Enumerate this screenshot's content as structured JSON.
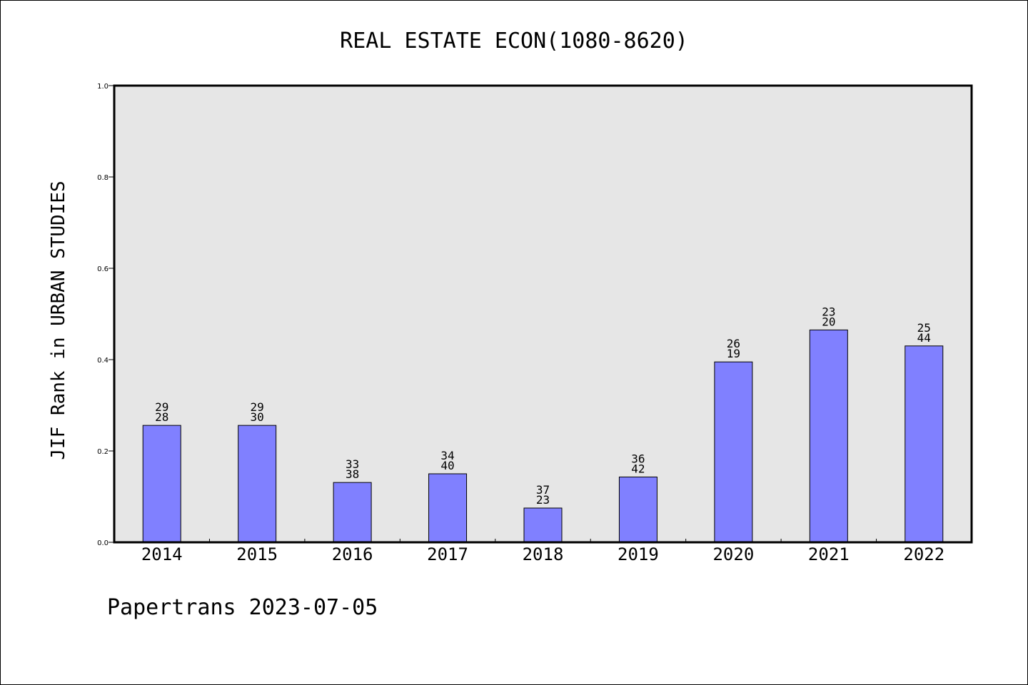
{
  "chart_data": {
    "type": "bar",
    "title": "REAL ESTATE ECON(1080-8620)",
    "xlabel": "",
    "ylabel": "JIF Rank in URBAN STUDIES",
    "ylim": [
      0,
      1.0
    ],
    "yticks": [
      "0.0",
      "0.2",
      "0.4",
      "0.6",
      "0.8",
      "1.0"
    ],
    "grid": false,
    "categories": [
      "2014",
      "2015",
      "2016",
      "2017",
      "2018",
      "2019",
      "2020",
      "2021",
      "2022"
    ],
    "values": [
      0.256,
      0.256,
      0.131,
      0.15,
      0.075,
      0.143,
      0.395,
      0.465,
      0.43
    ],
    "labels_top": [
      "29",
      "29",
      "33",
      "34",
      "37",
      "36",
      "26",
      "23",
      "25"
    ],
    "labels_bottom": [
      "28",
      "30",
      "38",
      "40",
      "23",
      "42",
      "19",
      "20",
      "44"
    ],
    "colors": {
      "bar": "#8080ff",
      "plot_bg": "#e6e6e6"
    }
  },
  "footer": "Papertrans 2023-07-05"
}
